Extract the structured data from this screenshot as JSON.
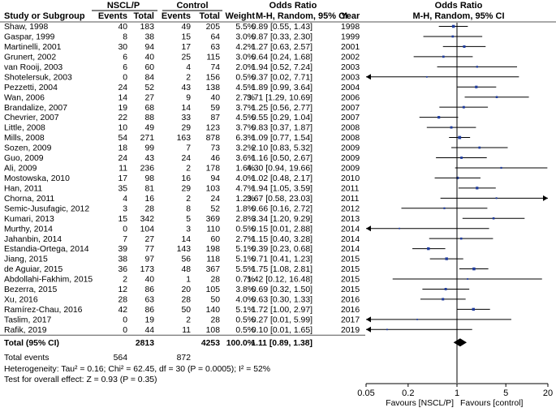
{
  "chart_data": {
    "type": "forest",
    "header": {
      "group1": "NSCL/P",
      "group2": "Control",
      "or_title": "Odds Ratio",
      "study_col": "Study or Subgroup",
      "events": "Events",
      "total": "Total",
      "weight": "Weight",
      "method": "M-H, Random, 95% CI",
      "year": "Year",
      "plot_title": "Odds Ratio",
      "plot_method": "M-H, Random, 95% CI"
    },
    "studies": [
      {
        "name": "Shaw, 1998",
        "e1": "40",
        "t1": "183",
        "e2": "49",
        "t2": "205",
        "weight": "5.5%",
        "ci_text": "0.89 [0.55, 1.43]",
        "year": "1998",
        "or": 0.89,
        "lo": 0.55,
        "hi": 1.43
      },
      {
        "name": "Gaspar, 1999",
        "e1": "8",
        "t1": "38",
        "e2": "15",
        "t2": "64",
        "weight": "3.0%",
        "ci_text": "0.87 [0.33, 2.30]",
        "year": "1999",
        "or": 0.87,
        "lo": 0.33,
        "hi": 2.3
      },
      {
        "name": "Martinelli, 2001",
        "e1": "30",
        "t1": "94",
        "e2": "17",
        "t2": "63",
        "weight": "4.2%",
        "ci_text": "1.27 [0.63, 2.57]",
        "year": "2001",
        "or": 1.27,
        "lo": 0.63,
        "hi": 2.57
      },
      {
        "name": "Grunert, 2002",
        "e1": "6",
        "t1": "40",
        "e2": "25",
        "t2": "115",
        "weight": "3.0%",
        "ci_text": "0.64 [0.24, 1.68]",
        "year": "2002",
        "or": 0.64,
        "lo": 0.24,
        "hi": 1.68
      },
      {
        "name": "van Rooij, 2003",
        "e1": "6",
        "t1": "60",
        "e2": "4",
        "t2": "74",
        "weight": "2.0%",
        "ci_text": "1.94 [0.52, 7.24]",
        "year": "2003",
        "or": 1.94,
        "lo": 0.52,
        "hi": 7.24
      },
      {
        "name": "Shotelersuk, 2003",
        "e1": "0",
        "t1": "84",
        "e2": "2",
        "t2": "156",
        "weight": "0.5%",
        "ci_text": "0.37 [0.02, 7.71]",
        "year": "2003",
        "or": 0.37,
        "lo": 0.02,
        "hi": 7.71
      },
      {
        "name": "Pezzetti, 2004",
        "e1": "24",
        "t1": "52",
        "e2": "43",
        "t2": "138",
        "weight": "4.5%",
        "ci_text": "1.89 [0.99, 3.64]",
        "year": "2004",
        "or": 1.89,
        "lo": 0.99,
        "hi": 3.64
      },
      {
        "name": "Wan, 2006",
        "e1": "14",
        "t1": "27",
        "e2": "9",
        "t2": "40",
        "weight": "2.7%",
        "ci_text": "3.71 [1.29, 10.69]",
        "year": "2006",
        "or": 3.71,
        "lo": 1.29,
        "hi": 10.69
      },
      {
        "name": "Brandalize, 2007",
        "e1": "19",
        "t1": "68",
        "e2": "14",
        "t2": "59",
        "weight": "3.7%",
        "ci_text": "1.25 [0.56, 2.77]",
        "year": "2007",
        "or": 1.25,
        "lo": 0.56,
        "hi": 2.77
      },
      {
        "name": "Chevrier, 2007",
        "e1": "22",
        "t1": "88",
        "e2": "33",
        "t2": "87",
        "weight": "4.5%",
        "ci_text": "0.55 [0.29, 1.04]",
        "year": "2007",
        "or": 0.55,
        "lo": 0.29,
        "hi": 1.04
      },
      {
        "name": "Little, 2008",
        "e1": "10",
        "t1": "49",
        "e2": "29",
        "t2": "123",
        "weight": "3.7%",
        "ci_text": "0.83 [0.37, 1.87]",
        "year": "2008",
        "or": 0.83,
        "lo": 0.37,
        "hi": 1.87
      },
      {
        "name": "Mills, 2008",
        "e1": "54",
        "t1": "271",
        "e2": "163",
        "t2": "878",
        "weight": "6.3%",
        "ci_text": "1.09 [0.77, 1.54]",
        "year": "2008",
        "or": 1.09,
        "lo": 0.77,
        "hi": 1.54
      },
      {
        "name": "Sozen, 2009",
        "e1": "18",
        "t1": "99",
        "e2": "7",
        "t2": "73",
        "weight": "3.2%",
        "ci_text": "2.10 [0.83, 5.32]",
        "year": "2009",
        "or": 2.1,
        "lo": 0.83,
        "hi": 5.32
      },
      {
        "name": "Guo, 2009",
        "e1": "24",
        "t1": "43",
        "e2": "24",
        "t2": "46",
        "weight": "3.6%",
        "ci_text": "1.16 [0.50, 2.67]",
        "year": "2009",
        "or": 1.16,
        "lo": 0.5,
        "hi": 2.67
      },
      {
        "name": "Ali, 2009",
        "e1": "11",
        "t1": "236",
        "e2": "2",
        "t2": "178",
        "weight": "1.6%",
        "ci_text": "4.30 [0.94, 19.66]",
        "year": "2009",
        "or": 4.3,
        "lo": 0.94,
        "hi": 19.66
      },
      {
        "name": "Mostowska, 2010",
        "e1": "17",
        "t1": "98",
        "e2": "16",
        "t2": "94",
        "weight": "4.0%",
        "ci_text": "1.02 [0.48, 2.17]",
        "year": "2010",
        "or": 1.02,
        "lo": 0.48,
        "hi": 2.17
      },
      {
        "name": "Han, 2011",
        "e1": "35",
        "t1": "81",
        "e2": "29",
        "t2": "103",
        "weight": "4.7%",
        "ci_text": "1.94 [1.05, 3.59]",
        "year": "2011",
        "or": 1.94,
        "lo": 1.05,
        "hi": 3.59
      },
      {
        "name": "Chorna, 2011",
        "e1": "4",
        "t1": "16",
        "e2": "2",
        "t2": "24",
        "weight": "1.2%",
        "ci_text": "3.67 [0.58, 23.03]",
        "year": "2011",
        "or": 3.67,
        "lo": 0.58,
        "hi": 23.03
      },
      {
        "name": "Semic-Jusufagic, 2012",
        "e1": "3",
        "t1": "28",
        "e2": "8",
        "t2": "52",
        "weight": "1.8%",
        "ci_text": "0.66 [0.16, 2.72]",
        "year": "2012",
        "or": 0.66,
        "lo": 0.16,
        "hi": 2.72
      },
      {
        "name": "Kumari, 2013",
        "e1": "15",
        "t1": "342",
        "e2": "5",
        "t2": "369",
        "weight": "2.8%",
        "ci_text": "3.34 [1.20, 9.29]",
        "year": "2013",
        "or": 3.34,
        "lo": 1.2,
        "hi": 9.29
      },
      {
        "name": "Murthy, 2014",
        "e1": "0",
        "t1": "104",
        "e2": "3",
        "t2": "110",
        "weight": "0.5%",
        "ci_text": "0.15 [0.01, 2.88]",
        "year": "2014",
        "or": 0.15,
        "lo": 0.01,
        "hi": 2.88
      },
      {
        "name": "Jahanbin, 2014",
        "e1": "7",
        "t1": "27",
        "e2": "14",
        "t2": "60",
        "weight": "2.7%",
        "ci_text": "1.15 [0.40, 3.28]",
        "year": "2014",
        "or": 1.15,
        "lo": 0.4,
        "hi": 3.28
      },
      {
        "name": "Estandia-Ortega, 2014",
        "e1": "39",
        "t1": "77",
        "e2": "143",
        "t2": "198",
        "weight": "5.1%",
        "ci_text": "0.39 [0.23, 0.68]",
        "year": "2014",
        "or": 0.39,
        "lo": 0.23,
        "hi": 0.68
      },
      {
        "name": "Jiang, 2015",
        "e1": "38",
        "t1": "97",
        "e2": "56",
        "t2": "118",
        "weight": "5.1%",
        "ci_text": "0.71 [0.41, 1.23]",
        "year": "2015",
        "or": 0.71,
        "lo": 0.41,
        "hi": 1.23
      },
      {
        "name": "de Aguiar, 2015",
        "e1": "36",
        "t1": "173",
        "e2": "48",
        "t2": "367",
        "weight": "5.5%",
        "ci_text": "1.75 [1.08, 2.81]",
        "year": "2015",
        "or": 1.75,
        "lo": 1.08,
        "hi": 2.81
      },
      {
        "name": "Abdollahi-Fakhim, 2015",
        "e1": "2",
        "t1": "40",
        "e2": "1",
        "t2": "28",
        "weight": "0.7%",
        "ci_text": "1.42 [0.12, 16.48]",
        "year": "2015",
        "or": 1.42,
        "lo": 0.12,
        "hi": 16.48
      },
      {
        "name": "Bezerra, 2015",
        "e1": "12",
        "t1": "86",
        "e2": "20",
        "t2": "105",
        "weight": "3.8%",
        "ci_text": "0.69 [0.32, 1.50]",
        "year": "2015",
        "or": 0.69,
        "lo": 0.32,
        "hi": 1.5
      },
      {
        "name": "Xu, 2016",
        "e1": "28",
        "t1": "63",
        "e2": "28",
        "t2": "50",
        "weight": "4.0%",
        "ci_text": "0.63 [0.30, 1.33]",
        "year": "2016",
        "or": 0.63,
        "lo": 0.3,
        "hi": 1.33
      },
      {
        "name": "Ramírez-Chau, 2016",
        "e1": "42",
        "t1": "86",
        "e2": "50",
        "t2": "140",
        "weight": "5.1%",
        "ci_text": "1.72 [1.00, 2.97]",
        "year": "2016",
        "or": 1.72,
        "lo": 1.0,
        "hi": 2.97
      },
      {
        "name": "Taslim, 2017",
        "e1": "0",
        "t1": "19",
        "e2": "2",
        "t2": "28",
        "weight": "0.5%",
        "ci_text": "0.27 [0.01, 5.99]",
        "year": "2017",
        "or": 0.27,
        "lo": 0.01,
        "hi": 5.99
      },
      {
        "name": "Rafik, 2019",
        "e1": "0",
        "t1": "44",
        "e2": "11",
        "t2": "108",
        "weight": "0.5%",
        "ci_text": "0.10 [0.01, 1.65]",
        "year": "2019",
        "or": 0.1,
        "lo": 0.01,
        "hi": 1.65
      }
    ],
    "total": {
      "label": "Total (95% CI)",
      "t1": "2813",
      "t2": "4253",
      "weight": "100.0%",
      "ci_text": "1.11 [0.89, 1.38]",
      "or": 1.11,
      "lo": 0.89,
      "hi": 1.38
    },
    "total_events": {
      "label": "Total events",
      "e1": "564",
      "e2": "872"
    },
    "heterogeneity": "Heterogeneity: Tau² = 0.16; Chi² = 62.45, df = 30 (P = 0.0005); I² = 52%",
    "overall_effect": "Test for overall effect: Z = 0.93 (P = 0.35)",
    "axis": {
      "scale": "log",
      "range": [
        0.05,
        20
      ],
      "ticks": [
        {
          "v": 0.05,
          "label": "0.05"
        },
        {
          "v": 0.2,
          "label": "0.2"
        },
        {
          "v": 1,
          "label": "1"
        },
        {
          "v": 5,
          "label": "5"
        },
        {
          "v": 20,
          "label": "20"
        }
      ],
      "favours_left": "Favours [NSCL/P]",
      "favours_right": "Favours [control]"
    },
    "colors": {
      "marker": "#1f3c9e",
      "line": "#000000",
      "separator": "#555555"
    }
  }
}
